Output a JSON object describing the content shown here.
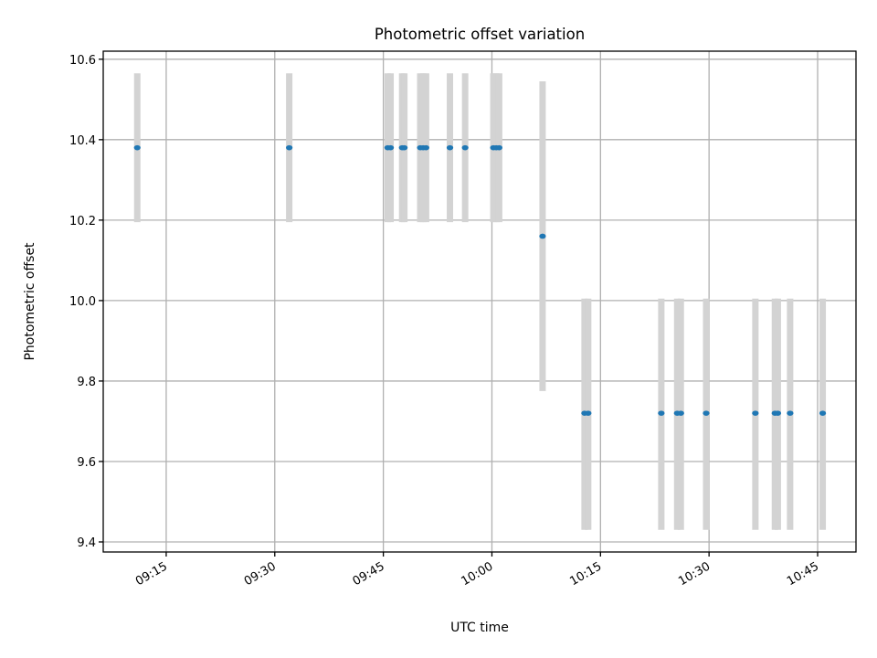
{
  "chart_data": {
    "type": "scatter",
    "title": "Photometric offset variation",
    "xlabel": "UTC time",
    "ylabel": "Photometric offset",
    "x_ticks": [
      "09:15",
      "09:30",
      "09:45",
      "10:00",
      "10:15",
      "10:30",
      "10:45"
    ],
    "y_ticks": [
      "9.4",
      "9.6",
      "9.8",
      "10.0",
      "10.2",
      "10.4",
      "10.6"
    ],
    "xlim": [
      "09:06.3",
      "10:50.3"
    ],
    "ylim": [
      9.375,
      10.62
    ],
    "grid": true,
    "colors": {
      "points": "#1f77b4",
      "errorbars": "#d3d3d3"
    },
    "points": [
      {
        "t": "09:11.0",
        "y": 10.38,
        "low": 10.195,
        "high": 10.565
      },
      {
        "t": "09:32.0",
        "y": 10.38,
        "low": 10.195,
        "high": 10.565
      },
      {
        "t": "09:45.6",
        "y": 10.38,
        "low": 10.195,
        "high": 10.565
      },
      {
        "t": "09:46.0",
        "y": 10.38,
        "low": 10.195,
        "high": 10.565
      },
      {
        "t": "09:47.6",
        "y": 10.38,
        "low": 10.195,
        "high": 10.565
      },
      {
        "t": "09:47.9",
        "y": 10.38,
        "low": 10.195,
        "high": 10.565
      },
      {
        "t": "09:50.1",
        "y": 10.38,
        "low": 10.195,
        "high": 10.565
      },
      {
        "t": "09:50.5",
        "y": 10.38,
        "low": 10.195,
        "high": 10.565
      },
      {
        "t": "09:50.9",
        "y": 10.38,
        "low": 10.195,
        "high": 10.565
      },
      {
        "t": "09:54.2",
        "y": 10.38,
        "low": 10.195,
        "high": 10.565
      },
      {
        "t": "09:56.3",
        "y": 10.38,
        "low": 10.195,
        "high": 10.565
      },
      {
        "t": "10:00.2",
        "y": 10.38,
        "low": 10.195,
        "high": 10.565
      },
      {
        "t": "10:00.6",
        "y": 10.38,
        "low": 10.195,
        "high": 10.565
      },
      {
        "t": "10:01.0",
        "y": 10.38,
        "low": 10.195,
        "high": 10.565
      },
      {
        "t": "10:07.0",
        "y": 10.16,
        "low": 9.775,
        "high": 10.545
      },
      {
        "t": "10:12.8",
        "y": 9.72,
        "low": 9.43,
        "high": 10.005
      },
      {
        "t": "10:13.3",
        "y": 9.72,
        "low": 9.43,
        "high": 10.005
      },
      {
        "t": "10:23.4",
        "y": 9.72,
        "low": 9.43,
        "high": 10.005
      },
      {
        "t": "10:25.6",
        "y": 9.72,
        "low": 9.43,
        "high": 10.005
      },
      {
        "t": "10:26.1",
        "y": 9.72,
        "low": 9.43,
        "high": 10.005
      },
      {
        "t": "10:29.6",
        "y": 9.72,
        "low": 9.43,
        "high": 10.005
      },
      {
        "t": "10:36.4",
        "y": 9.72,
        "low": 9.43,
        "high": 10.005
      },
      {
        "t": "10:39.1",
        "y": 9.72,
        "low": 9.43,
        "high": 10.005
      },
      {
        "t": "10:39.5",
        "y": 9.72,
        "low": 9.43,
        "high": 10.005
      },
      {
        "t": "10:41.2",
        "y": 9.72,
        "low": 9.43,
        "high": 10.005
      },
      {
        "t": "10:45.7",
        "y": 9.72,
        "low": 9.43,
        "high": 10.005
      }
    ]
  }
}
